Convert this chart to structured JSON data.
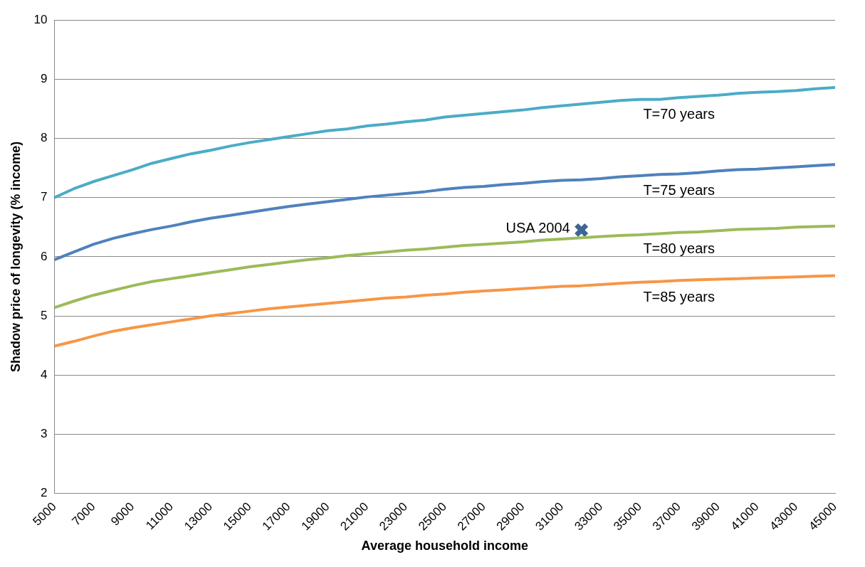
{
  "chart_data": {
    "type": "line",
    "xlabel": "Average household income",
    "ylabel": "Shadow price of longevity (% income)",
    "x": [
      5000,
      6000,
      7000,
      8000,
      9000,
      10000,
      11000,
      12000,
      13000,
      14000,
      15000,
      16000,
      17000,
      18000,
      19000,
      20000,
      21000,
      22000,
      23000,
      24000,
      25000,
      26000,
      27000,
      28000,
      29000,
      30000,
      31000,
      32000,
      33000,
      34000,
      35000,
      36000,
      37000,
      38000,
      39000,
      40000,
      41000,
      42000,
      43000,
      44000,
      45000
    ],
    "xlim": [
      5000,
      45000
    ],
    "xticks": [
      5000,
      7000,
      9000,
      11000,
      13000,
      15000,
      17000,
      19000,
      21000,
      23000,
      25000,
      27000,
      29000,
      31000,
      33000,
      35000,
      37000,
      39000,
      41000,
      43000,
      45000
    ],
    "ylim": [
      2,
      10
    ],
    "yticks": [
      2,
      3,
      4,
      5,
      6,
      7,
      8,
      9,
      10
    ],
    "grid": "y",
    "legend": false,
    "marker": "none",
    "series": [
      {
        "name": "T=70 years",
        "color": "#4bacc6",
        "values": [
          7.0,
          7.15,
          7.27,
          7.37,
          7.47,
          7.58,
          7.66,
          7.74,
          7.8,
          7.87,
          7.93,
          7.98,
          8.03,
          8.08,
          8.13,
          8.16,
          8.21,
          8.24,
          8.28,
          8.31,
          8.36,
          8.39,
          8.42,
          8.45,
          8.48,
          8.52,
          8.55,
          8.58,
          8.61,
          8.64,
          8.66,
          8.66,
          8.69,
          8.71,
          8.73,
          8.76,
          8.78,
          8.79,
          8.81,
          8.84,
          8.86
        ]
      },
      {
        "name": "T=75 years",
        "color": "#4f81bd",
        "values": [
          5.95,
          6.08,
          6.21,
          6.31,
          6.39,
          6.46,
          6.52,
          6.59,
          6.65,
          6.7,
          6.75,
          6.8,
          6.85,
          6.89,
          6.93,
          6.97,
          7.01,
          7.04,
          7.07,
          7.1,
          7.14,
          7.17,
          7.19,
          7.22,
          7.24,
          7.27,
          7.29,
          7.3,
          7.32,
          7.35,
          7.37,
          7.39,
          7.4,
          7.42,
          7.45,
          7.47,
          7.48,
          7.5,
          7.52,
          7.54,
          7.56
        ]
      },
      {
        "name": "T=80 years",
        "color": "#9bbb59",
        "values": [
          5.14,
          5.25,
          5.35,
          5.43,
          5.51,
          5.58,
          5.63,
          5.68,
          5.73,
          5.78,
          5.83,
          5.87,
          5.91,
          5.95,
          5.98,
          6.02,
          6.05,
          6.08,
          6.11,
          6.13,
          6.16,
          6.19,
          6.21,
          6.23,
          6.25,
          6.28,
          6.3,
          6.32,
          6.34,
          6.36,
          6.37,
          6.39,
          6.41,
          6.42,
          6.44,
          6.46,
          6.47,
          6.48,
          6.5,
          6.51,
          6.52
        ]
      },
      {
        "name": "T=85 years",
        "color": "#f79646",
        "values": [
          4.49,
          4.57,
          4.66,
          4.74,
          4.8,
          4.85,
          4.9,
          4.95,
          5.0,
          5.04,
          5.08,
          5.12,
          5.15,
          5.18,
          5.21,
          5.24,
          5.27,
          5.3,
          5.32,
          5.35,
          5.37,
          5.4,
          5.42,
          5.44,
          5.46,
          5.48,
          5.5,
          5.51,
          5.53,
          5.55,
          5.57,
          5.58,
          5.6,
          5.61,
          5.62,
          5.63,
          5.64,
          5.65,
          5.66,
          5.67,
          5.68
        ]
      },
      {
        "name": "USA 2004",
        "type": "scatter",
        "marker": "cross",
        "color": "#3e6594",
        "x": [
          32000
        ],
        "values": [
          6.45
        ]
      }
    ]
  }
}
